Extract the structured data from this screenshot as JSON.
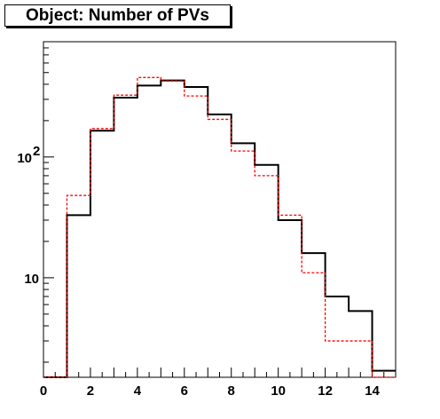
{
  "title": "Object: Number of PVs",
  "chart_data": {
    "type": "histogram",
    "title": "Object: Number of PVs",
    "xlabel": "",
    "ylabel": "",
    "xlim": [
      0,
      15
    ],
    "ylim_log": [
      1.5,
      900
    ],
    "yscale": "log",
    "grid": false,
    "bins": [
      0,
      1,
      2,
      3,
      4,
      5,
      6,
      7,
      8,
      9,
      10,
      11,
      12,
      13,
      14,
      15
    ],
    "x_tick_labels": [
      "0",
      "2",
      "4",
      "6",
      "8",
      "10",
      "12",
      "14"
    ],
    "x_ticks": [
      0,
      2,
      4,
      6,
      8,
      10,
      12,
      14
    ],
    "y_tick_labels": [
      {
        "value": 10,
        "base": "10",
        "exp": ""
      },
      {
        "value": 100,
        "base": "10",
        "exp": "2"
      }
    ],
    "series": [
      {
        "style": "solid",
        "color": "#000000",
        "values": [
          1.5,
          33,
          165,
          310,
          390,
          430,
          380,
          225,
          130,
          86,
          30,
          16,
          7,
          5.3,
          1.7
        ]
      },
      {
        "style": "dashed",
        "color": "#ff0000",
        "values": [
          1.5,
          48,
          172,
          325,
          455,
          425,
          320,
          205,
          112,
          70,
          33,
          11,
          3,
          3,
          1.5
        ]
      }
    ]
  }
}
